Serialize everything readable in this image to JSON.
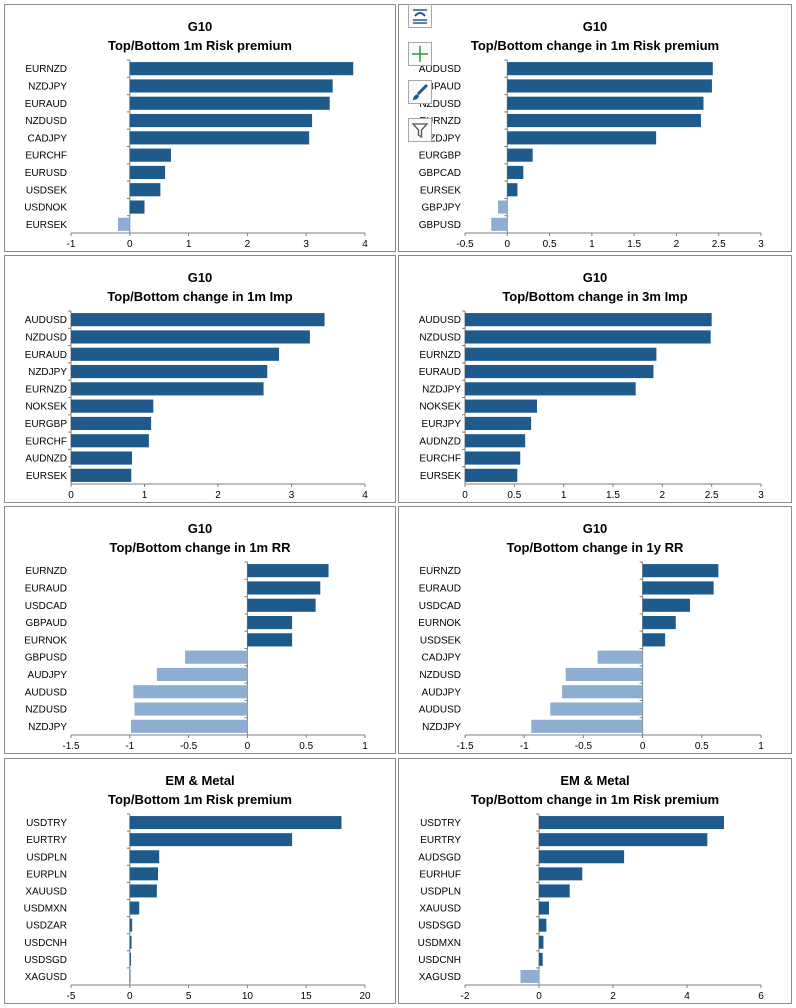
{
  "colors": {
    "positive": "#1f5a8c",
    "negative": "#8eaed1",
    "axis": "#7f7f7f",
    "text": "#000000"
  },
  "toolbar": {
    "icons": [
      "chart-style-icon",
      "chart-elements-plus-icon",
      "chart-brush-icon",
      "chart-filter-icon"
    ]
  },
  "chart_data": [
    {
      "type": "bar",
      "orientation": "horizontal",
      "title": "G10",
      "subtitle": "Top/Bottom 1m Risk premium",
      "categories": [
        "EURNZD",
        "NZDJPY",
        "EURAUD",
        "NZDUSD",
        "CADJPY",
        "EURCHF",
        "EURUSD",
        "USDSEK",
        "USDNOK",
        "EURSEK"
      ],
      "values": [
        3.8,
        3.45,
        3.4,
        3.1,
        3.05,
        0.7,
        0.6,
        0.52,
        0.25,
        -0.2
      ],
      "xlim": [
        -1,
        4
      ],
      "ticks": [
        -1,
        0,
        1,
        2,
        3,
        4
      ],
      "tick_labels": [
        "-1",
        "0",
        "1",
        "2",
        "3",
        "4"
      ]
    },
    {
      "type": "bar",
      "orientation": "horizontal",
      "title": "G10",
      "subtitle": "Top/Bottom change in 1m Risk premium",
      "categories": [
        "AUDUSD",
        "GBPAUD",
        "NZDUSD",
        "EURNZD",
        "NZDJPY",
        "EURGBP",
        "GBPCAD",
        "EURSEK",
        "GBPJPY",
        "GBPUSD"
      ],
      "values": [
        2.43,
        2.42,
        2.32,
        2.29,
        1.76,
        0.3,
        0.19,
        0.12,
        -0.11,
        -0.19
      ],
      "xlim": [
        -0.5,
        3
      ],
      "ticks": [
        -0.5,
        0,
        0.5,
        1,
        1.5,
        2,
        2.5,
        3
      ],
      "tick_labels": [
        "-0.5",
        "0",
        "0.5",
        "1",
        "1.5",
        "2",
        "2.5",
        "3"
      ]
    },
    {
      "type": "bar",
      "orientation": "horizontal",
      "title": "G10",
      "subtitle": "Top/Bottom change in 1m Imp",
      "categories": [
        "AUDUSD",
        "NZDUSD",
        "EURAUD",
        "NZDJPY",
        "EURNZD",
        "NOKSEK",
        "EURGBP",
        "EURCHF",
        "AUDNZD",
        "EURSEK"
      ],
      "values": [
        3.45,
        3.25,
        2.83,
        2.67,
        2.62,
        1.12,
        1.09,
        1.06,
        0.83,
        0.82
      ],
      "xlim": [
        0,
        4
      ],
      "ticks": [
        0,
        1,
        2,
        3,
        4
      ],
      "tick_labels": [
        "0",
        "1",
        "2",
        "3",
        "4"
      ]
    },
    {
      "type": "bar",
      "orientation": "horizontal",
      "title": "G10",
      "subtitle": "Top/Bottom change in 3m Imp",
      "categories": [
        "AUDUSD",
        "NZDUSD",
        "EURNZD",
        "EURAUD",
        "NZDJPY",
        "NOKSEK",
        "EURJPY",
        "AUDNZD",
        "EURCHF",
        "EURSEK"
      ],
      "values": [
        2.5,
        2.49,
        1.94,
        1.91,
        1.73,
        0.73,
        0.67,
        0.61,
        0.56,
        0.53
      ],
      "xlim": [
        0,
        3
      ],
      "ticks": [
        0,
        0.5,
        1,
        1.5,
        2,
        2.5,
        3
      ],
      "tick_labels": [
        "0",
        "0.5",
        "1",
        "1.5",
        "2",
        "2.5",
        "3"
      ]
    },
    {
      "type": "bar",
      "orientation": "horizontal",
      "title": "G10",
      "subtitle": "Top/Bottom change in 1m RR",
      "categories": [
        "EURNZD",
        "EURAUD",
        "USDCAD",
        "GBPAUD",
        "EURNOK",
        "GBPUSD",
        "AUDJPY",
        "AUDUSD",
        "NZDUSD",
        "NZDJPY"
      ],
      "values": [
        0.69,
        0.62,
        0.58,
        0.38,
        0.38,
        -0.53,
        -0.77,
        -0.97,
        -0.96,
        -0.99
      ],
      "xlim": [
        -1.5,
        1
      ],
      "ticks": [
        -1.5,
        -1,
        -0.5,
        0,
        0.5,
        1
      ],
      "tick_labels": [
        "-1.5",
        "-1",
        "-0.5",
        "0",
        "0.5",
        "1"
      ]
    },
    {
      "type": "bar",
      "orientation": "horizontal",
      "title": "G10",
      "subtitle": "Top/Bottom change in 1y RR",
      "categories": [
        "EURNZD",
        "EURAUD",
        "USDCAD",
        "EURNOK",
        "USDSEK",
        "CADJPY",
        "NZDUSD",
        "AUDJPY",
        "AUDUSD",
        "NZDJPY"
      ],
      "values": [
        0.64,
        0.6,
        0.4,
        0.28,
        0.19,
        -0.38,
        -0.65,
        -0.68,
        -0.78,
        -0.94
      ],
      "xlim": [
        -1.5,
        1
      ],
      "ticks": [
        -1.5,
        -1,
        -0.5,
        0,
        0.5,
        1
      ],
      "tick_labels": [
        "-1.5",
        "-1",
        "-0.5",
        "0",
        "0.5",
        "1"
      ]
    },
    {
      "type": "bar",
      "orientation": "horizontal",
      "title": "EM & Metal",
      "subtitle": "Top/Bottom 1m Risk premium",
      "categories": [
        "USDTRY",
        "EURTRY",
        "USDPLN",
        "EURPLN",
        "XAUUSD",
        "USDMXN",
        "USDZAR",
        "USDCNH",
        "USDSGD",
        "XAGUSD"
      ],
      "values": [
        18,
        13.8,
        2.5,
        2.4,
        2.3,
        0.8,
        0.2,
        0.15,
        0.1,
        0.05
      ],
      "xlim": [
        -5,
        20
      ],
      "ticks": [
        -5,
        0,
        5,
        10,
        15,
        20
      ],
      "tick_labels": [
        "-5",
        "0",
        "5",
        "10",
        "15",
        "20"
      ]
    },
    {
      "type": "bar",
      "orientation": "horizontal",
      "title": "EM & Metal",
      "subtitle": "Top/Bottom change in 1m Risk premium",
      "categories": [
        "USDTRY",
        "EURTRY",
        "AUDSGD",
        "EURHUF",
        "USDPLN",
        "XAUUSD",
        "USDSGD",
        "USDMXN",
        "USDCNH",
        "XAGUSD"
      ],
      "values": [
        5.0,
        4.55,
        2.3,
        1.17,
        0.83,
        0.27,
        0.2,
        0.12,
        0.1,
        -0.5
      ],
      "xlim": [
        -2,
        6
      ],
      "ticks": [
        -2,
        0,
        2,
        4,
        6
      ],
      "tick_labels": [
        "-2",
        "0",
        "2",
        "4",
        "6"
      ]
    }
  ]
}
